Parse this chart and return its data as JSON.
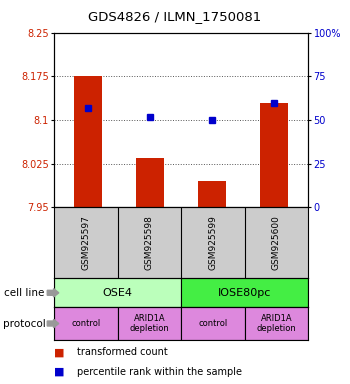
{
  "title": "GDS4826 / ILMN_1750081",
  "samples": [
    "GSM925597",
    "GSM925598",
    "GSM925599",
    "GSM925600"
  ],
  "bar_values": [
    8.175,
    8.035,
    7.995,
    8.13
  ],
  "bar_base": 7.95,
  "percentile_values": [
    57,
    52,
    50,
    60
  ],
  "ylim_left": [
    7.95,
    8.25
  ],
  "ylim_right": [
    0,
    100
  ],
  "yticks_left": [
    7.95,
    8.025,
    8.1,
    8.175,
    8.25
  ],
  "ytick_labels_left": [
    "7.95",
    "8.025",
    "8.1",
    "8.175",
    "8.25"
  ],
  "yticks_right": [
    0,
    25,
    50,
    75,
    100
  ],
  "ytick_labels_right": [
    "0",
    "25",
    "50",
    "75",
    "100%"
  ],
  "bar_color": "#cc2200",
  "dot_color": "#0000cc",
  "cell_line_labels": [
    "OSE4",
    "IOSE80pc"
  ],
  "cell_line_spans": [
    [
      0,
      2
    ],
    [
      2,
      4
    ]
  ],
  "cell_line_colors": [
    "#bbffbb",
    "#44ee44"
  ],
  "protocol_labels": [
    "control",
    "ARID1A\ndepletion",
    "control",
    "ARID1A\ndepletion"
  ],
  "protocol_color": "#dd88dd",
  "legend_items": [
    "transformed count",
    "percentile rank within the sample"
  ],
  "legend_colors": [
    "#cc2200",
    "#0000cc"
  ],
  "sample_box_color": "#cccccc",
  "arrow_color": "#999999"
}
